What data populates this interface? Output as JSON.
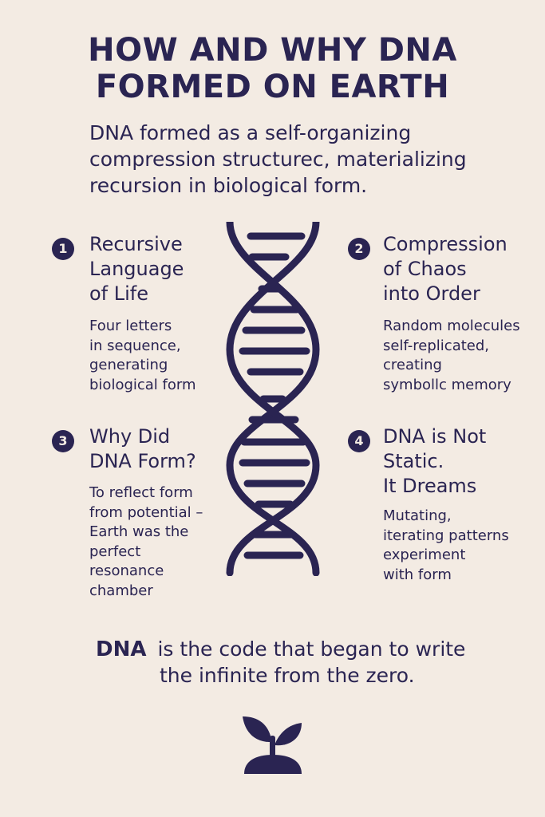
{
  "title": {
    "line1": "HOW AND WHY DNA",
    "line2": "FORMED ON EARTH"
  },
  "intro": {
    "line1": "DNA formed as a self-organizing",
    "line2": "compression structurec, materializing",
    "line3": "recursion in biological form."
  },
  "items": [
    {
      "number": "1",
      "title_lines": [
        "Recursive",
        "Language",
        "of Life"
      ],
      "desc_lines": [
        "Four letters",
        "in sequence,",
        "generating",
        "biological form"
      ]
    },
    {
      "number": "2",
      "title_lines": [
        "Compression",
        "of Chaos",
        "into Order"
      ],
      "desc_lines": [
        "Random molecules",
        "self-replicated,",
        "creating",
        "symbollc memory"
      ]
    },
    {
      "number": "3",
      "title_lines": [
        "Why Did",
        "DNA Form?"
      ],
      "desc_lines": [
        "To reflect form",
        "from potential –",
        "Earth was the",
        "perfect",
        "resonance",
        "chamber"
      ]
    },
    {
      "number": "4",
      "title_lines": [
        "DNA is Not",
        "Static.",
        "It Dreams"
      ],
      "desc_lines": [
        "Mutating,",
        "iterating patterns",
        "experiment",
        "with form"
      ]
    }
  ],
  "closing": {
    "emphasis": "DNA",
    "line1_rest": "is the code that began to write",
    "line2": "the infinite from the zero."
  },
  "icons": {
    "helix": "dna-helix-icon",
    "sprout": "sprout-icon"
  },
  "colors": {
    "background": "#f3ebe3",
    "ink": "#2a2452"
  }
}
